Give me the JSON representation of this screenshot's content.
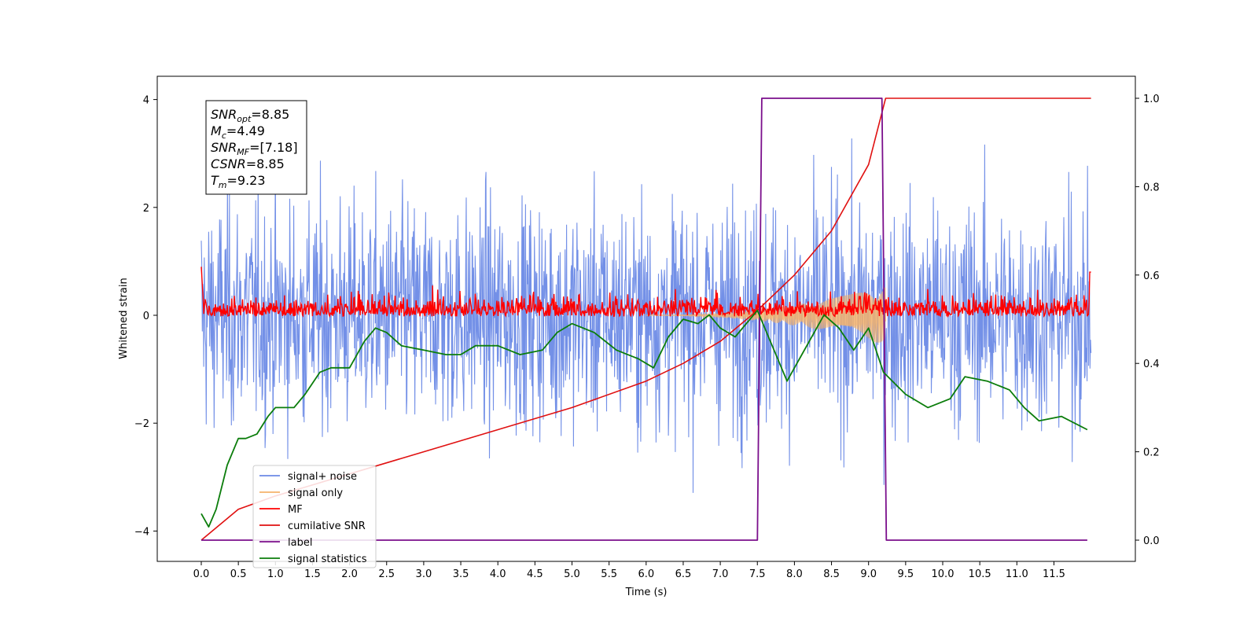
{
  "chart_data": {
    "type": "line",
    "xlabel": "Time (s)",
    "ylabel": "Whitened strain",
    "xlim": [
      -0.6,
      12.5
    ],
    "ylim": [
      -4.6,
      4.5
    ],
    "ylim_right": [
      -0.05,
      1.05
    ],
    "x_ticks": [
      "0.0",
      "0.5",
      "1.0",
      "1.5",
      "2.0",
      "2.5",
      "3.0",
      "3.5",
      "4.0",
      "4.5",
      "5.0",
      "5.5",
      "6.0",
      "6.5",
      "7.0",
      "7.5",
      "8.0",
      "8.5",
      "9.0",
      "9.5",
      "10.0",
      "10.5",
      "11.0",
      "11.5"
    ],
    "y_ticks_left": [
      "4",
      "2",
      "0",
      "−2",
      "−4"
    ],
    "y_ticks_right": [
      "1.0",
      "0.8",
      "0.6",
      "0.4",
      "0.2",
      "0.0"
    ],
    "legend_position": "lower-left",
    "colors": {
      "signal_noise": "#6b8ae6",
      "signal_only": "#f5b36b",
      "mf": "#ff0000",
      "cumulative_snr": "#e01010",
      "label": "#7b0f8c",
      "statistics": "#0b7d0b"
    },
    "annotation": {
      "lines": [
        {
          "sym": "SNR",
          "sub": "opt",
          "rest": "=8.85"
        },
        {
          "sym": "M",
          "sub": "c",
          "rest": "=4.49"
        },
        {
          "sym": "SNR",
          "sub": "MF",
          "rest": "=[7.18]"
        },
        {
          "sym": "CSNR",
          "sub": "",
          "rest": "=8.85"
        },
        {
          "sym": "T",
          "sub": "m",
          "rest": "=9.23"
        }
      ]
    },
    "series": [
      {
        "name": "signal+ noise",
        "axis": "left",
        "description": "noise",
        "amplitude_std": 1.05,
        "x_range": [
          0.0,
          12.0
        ]
      },
      {
        "name": "signal only",
        "axis": "left",
        "chirp_end": 9.23,
        "peak_amplitude": 0.55
      },
      {
        "name": "MF",
        "axis": "left",
        "amplitude": 0.18,
        "x_range": [
          0.0,
          12.0
        ]
      },
      {
        "name": "cumilative SNR",
        "axis": "right",
        "x": [
          0.0,
          0.5,
          1.0,
          2.0,
          3.0,
          4.0,
          5.0,
          6.0,
          6.5,
          7.0,
          7.5,
          8.0,
          8.5,
          9.0,
          9.23,
          12.0
        ],
        "y": [
          0.0,
          0.07,
          0.1,
          0.15,
          0.2,
          0.25,
          0.3,
          0.36,
          0.4,
          0.45,
          0.52,
          0.6,
          0.7,
          0.85,
          1.0,
          1.0
        ]
      },
      {
        "name": "label",
        "axis": "right",
        "x": [
          0.0,
          7.5,
          7.56,
          9.18,
          9.24,
          11.95
        ],
        "y": [
          0.0,
          0.0,
          1.0,
          1.0,
          0.0,
          0.0
        ]
      },
      {
        "name": "signal statistics",
        "axis": "right",
        "x": [
          0.0,
          0.1,
          0.2,
          0.35,
          0.5,
          0.6,
          0.75,
          0.9,
          1.0,
          1.25,
          1.4,
          1.6,
          1.75,
          2.0,
          2.2,
          2.35,
          2.5,
          2.7,
          3.0,
          3.3,
          3.5,
          3.7,
          4.0,
          4.3,
          4.6,
          4.8,
          5.0,
          5.3,
          5.6,
          5.9,
          6.1,
          6.3,
          6.5,
          6.7,
          6.85,
          7.0,
          7.2,
          7.5,
          7.7,
          7.9,
          8.2,
          8.4,
          8.6,
          8.8,
          9.0,
          9.2,
          9.5,
          9.8,
          10.1,
          10.3,
          10.6,
          10.9,
          11.1,
          11.3,
          11.6,
          11.95
        ],
        "y": [
          0.06,
          0.03,
          0.07,
          0.17,
          0.23,
          0.23,
          0.24,
          0.28,
          0.3,
          0.3,
          0.33,
          0.38,
          0.39,
          0.39,
          0.45,
          0.48,
          0.47,
          0.44,
          0.43,
          0.42,
          0.42,
          0.44,
          0.44,
          0.42,
          0.43,
          0.47,
          0.49,
          0.47,
          0.43,
          0.41,
          0.39,
          0.46,
          0.5,
          0.49,
          0.51,
          0.48,
          0.46,
          0.52,
          0.44,
          0.36,
          0.45,
          0.51,
          0.48,
          0.43,
          0.48,
          0.38,
          0.33,
          0.3,
          0.32,
          0.37,
          0.36,
          0.34,
          0.3,
          0.27,
          0.28,
          0.25
        ]
      }
    ]
  }
}
